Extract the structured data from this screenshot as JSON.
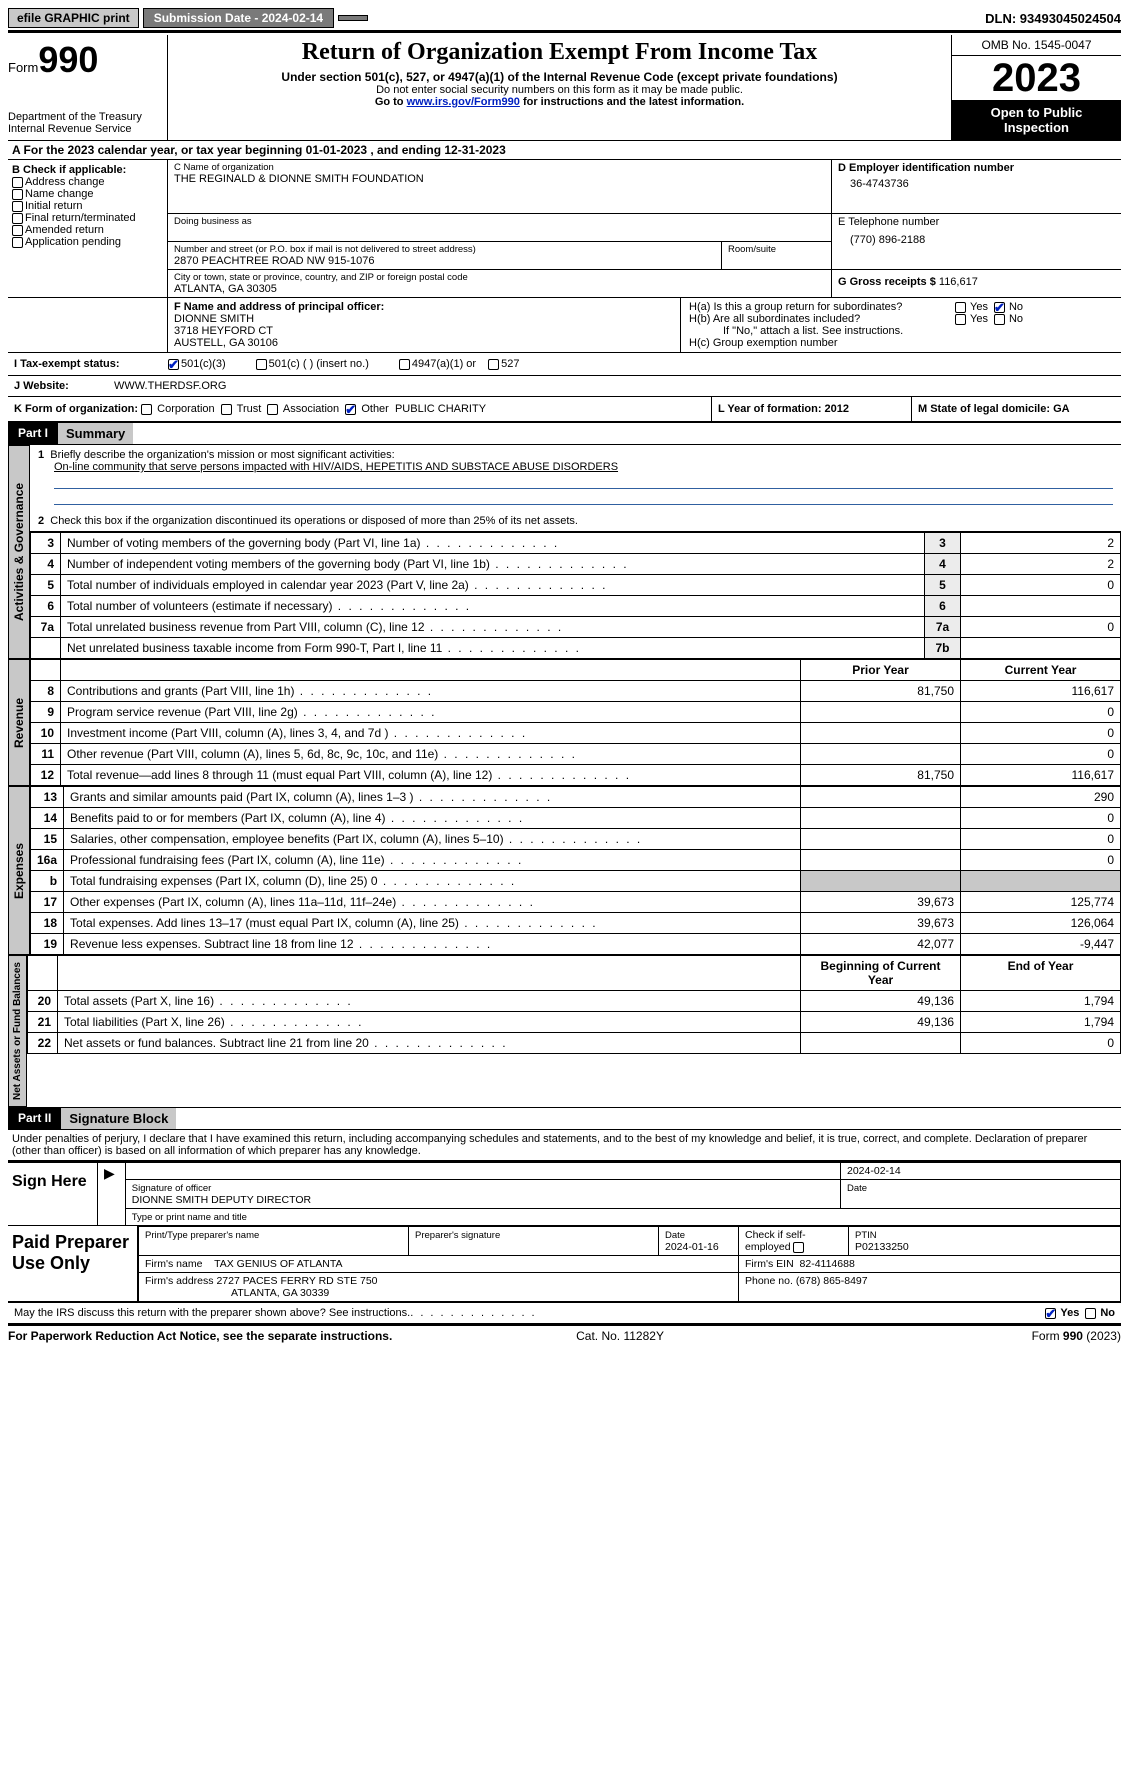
{
  "topbar": {
    "efile": "efile GRAPHIC print",
    "submission_label": "Submission Date - 2024-02-14",
    "dln": "DLN: 93493045024504"
  },
  "header": {
    "form_word": "Form",
    "form_num": "990",
    "title": "Return of Organization Exempt From Income Tax",
    "sub": "Under section 501(c), 527, or 4947(a)(1) of the Internal Revenue Code (except private foundations)",
    "ssn": "Do not enter social security numbers on this form as it may be made public.",
    "goto_pre": "Go to ",
    "goto_link": "www.irs.gov/Form990",
    "goto_post": " for instructions and the latest information.",
    "dept": "Department of the Treasury",
    "irs": "Internal Revenue Service",
    "omb": "OMB No. 1545-0047",
    "year": "2023",
    "inspect1": "Open to Public",
    "inspect2": "Inspection"
  },
  "rowA": "A For the 2023 calendar year, or tax year beginning 01-01-2023    , and ending 12-31-2023",
  "colB": {
    "label": "B Check if applicable:",
    "o1": "Address change",
    "o2": "Name change",
    "o3": "Initial return",
    "o4": "Final return/terminated",
    "o5": "Amended return",
    "o6": "Application pending"
  },
  "boxC": {
    "name_label": "C Name of organization",
    "name": "THE REGINALD & DIONNE SMITH FOUNDATION",
    "dba_label": "Doing business as",
    "street_label": "Number and street (or P.O. box if mail is not delivered to street address)",
    "street": "2870 PEACHTREE ROAD NW 915-1076",
    "room_label": "Room/suite",
    "city_label": "City or town, state or province, country, and ZIP or foreign postal code",
    "city": "ATLANTA, GA   30305"
  },
  "boxD": {
    "label": "D Employer identification number",
    "val": "36-4743736"
  },
  "boxE": {
    "label": "E Telephone number",
    "val": "(770) 896-2188"
  },
  "boxG": {
    "label": "G Gross receipts $",
    "val": "116,617"
  },
  "boxF": {
    "label": "F  Name and address of principal officer:",
    "l1": "DIONNE SMITH",
    "l2": "3718 HEYFORD CT",
    "l3": "AUSTELL, GA   30106"
  },
  "boxH": {
    "a": "H(a)  Is this a group return for subordinates?",
    "b": "H(b)  Are all subordinates included?",
    "note": "If \"No,\" attach a list. See instructions.",
    "c": "H(c)  Group exemption number",
    "yes": "Yes",
    "no": "No"
  },
  "rowI": {
    "label": "I   Tax-exempt status:",
    "o1": "501(c)(3)",
    "o2": "501(c) (  ) (insert no.)",
    "o3": "4947(a)(1) or",
    "o4": "527"
  },
  "rowJ": {
    "label": "J   Website:",
    "val": "WWW.THERDSF.ORG"
  },
  "rowK": {
    "label": "K Form of organization:",
    "o1": "Corporation",
    "o2": "Trust",
    "o3": "Association",
    "o4": "Other",
    "o4v": "PUBLIC CHARITY"
  },
  "rowL": "L Year of formation: 2012",
  "rowM": "M State of legal domicile: GA",
  "part1": {
    "hdr": "Part I",
    "title": "Summary"
  },
  "summary": {
    "tabs": {
      "ag": "Activities & Governance",
      "rev": "Revenue",
      "exp": "Expenses",
      "net": "Net Assets or Fund Balances"
    },
    "l1a": "Briefly describe the organization's mission or most significant activities:",
    "l1b": "On-line community that serve persons impacted with HIV/AIDS, HEPETITIS AND SUBSTACE ABUSE DISORDERS",
    "l2": "Check this box        if the organization discontinued its operations or disposed of more than 25% of its net assets.",
    "ag_rows": [
      {
        "n": "3",
        "t": "Number of voting members of the governing body (Part VI, line 1a)",
        "b": "3",
        "v": "2"
      },
      {
        "n": "4",
        "t": "Number of independent voting members of the governing body (Part VI, line 1b)",
        "b": "4",
        "v": "2"
      },
      {
        "n": "5",
        "t": "Total number of individuals employed in calendar year 2023 (Part V, line 2a)",
        "b": "5",
        "v": "0"
      },
      {
        "n": "6",
        "t": "Total number of volunteers (estimate if necessary)",
        "b": "6",
        "v": ""
      },
      {
        "n": "7a",
        "t": "Total unrelated business revenue from Part VIII, column (C), line 12",
        "b": "7a",
        "v": "0"
      },
      {
        "n": "",
        "t": "Net unrelated business taxable income from Form 990-T, Part I, line 11",
        "b": "7b",
        "v": ""
      }
    ],
    "col_py": "Prior Year",
    "col_cy": "Current Year",
    "rev_rows": [
      {
        "n": "8",
        "t": "Contributions and grants (Part VIII, line 1h)",
        "p": "81,750",
        "c": "116,617"
      },
      {
        "n": "9",
        "t": "Program service revenue (Part VIII, line 2g)",
        "p": "",
        "c": "0"
      },
      {
        "n": "10",
        "t": "Investment income (Part VIII, column (A), lines 3, 4, and 7d )",
        "p": "",
        "c": "0"
      },
      {
        "n": "11",
        "t": "Other revenue (Part VIII, column (A), lines 5, 6d, 8c, 9c, 10c, and 11e)",
        "p": "",
        "c": "0"
      },
      {
        "n": "12",
        "t": "Total revenue—add lines 8 through 11 (must equal Part VIII, column (A), line 12)",
        "p": "81,750",
        "c": "116,617"
      }
    ],
    "exp_rows": [
      {
        "n": "13",
        "t": "Grants and similar amounts paid (Part IX, column (A), lines 1–3 )",
        "p": "",
        "c": "290"
      },
      {
        "n": "14",
        "t": "Benefits paid to or for members (Part IX, column (A), line 4)",
        "p": "",
        "c": "0"
      },
      {
        "n": "15",
        "t": "Salaries, other compensation, employee benefits (Part IX, column (A), lines 5–10)",
        "p": "",
        "c": "0"
      },
      {
        "n": "16a",
        "t": "Professional fundraising fees (Part IX, column (A), line 11e)",
        "p": "",
        "c": "0"
      },
      {
        "n": "b",
        "t": "Total fundraising expenses (Part IX, column (D), line 25) 0",
        "p": "SHADE",
        "c": "SHADE"
      },
      {
        "n": "17",
        "t": "Other expenses (Part IX, column (A), lines 11a–11d, 11f–24e)",
        "p": "39,673",
        "c": "125,774"
      },
      {
        "n": "18",
        "t": "Total expenses. Add lines 13–17 (must equal Part IX, column (A), line 25)",
        "p": "39,673",
        "c": "126,064"
      },
      {
        "n": "19",
        "t": "Revenue less expenses. Subtract line 18 from line 12",
        "p": "42,077",
        "c": "-9,447"
      }
    ],
    "col_boy": "Beginning of Current Year",
    "col_eoy": "End of Year",
    "net_rows": [
      {
        "n": "20",
        "t": "Total assets (Part X, line 16)",
        "p": "49,136",
        "c": "1,794"
      },
      {
        "n": "21",
        "t": "Total liabilities (Part X, line 26)",
        "p": "49,136",
        "c": "1,794"
      },
      {
        "n": "22",
        "t": "Net assets or fund balances. Subtract line 21 from line 20",
        "p": "",
        "c": "0"
      }
    ]
  },
  "part2": {
    "hdr": "Part II",
    "title": "Signature Block"
  },
  "perjury": "Under penalties of perjury, I declare that I have examined this return, including accompanying schedules and statements, and to the best of my knowledge and belief, it is true, correct, and complete. Declaration of preparer (other than officer) is based on all information of which preparer has any knowledge.",
  "sign": {
    "here": "Sign Here",
    "date": "2024-02-14",
    "sig_label": "Signature of officer",
    "name": "DIONNE SMITH  DEPUTY DIRECTOR",
    "type_label": "Type or print name and title",
    "date_label": "Date"
  },
  "paid": {
    "title": "Paid Preparer Use Only",
    "c1": "Print/Type preparer's name",
    "c2": "Preparer's signature",
    "c3": "Date",
    "c3v": "2024-01-16",
    "c4": "Check         if self-employed",
    "c5": "PTIN",
    "c5v": "P02133250",
    "fname_l": "Firm's name",
    "fname": "TAX GENIUS OF ATLANTA",
    "fein_l": "Firm's EIN",
    "fein": "82-4114688",
    "faddr_l": "Firm's address",
    "faddr1": "2727 PACES FERRY RD STE 750",
    "faddr2": "ATLANTA, GA   30339",
    "fphone_l": "Phone no.",
    "fphone": "(678) 865-8497"
  },
  "discuss": "May the IRS discuss this return with the preparer shown above? See instructions.",
  "footer": {
    "left": "For Paperwork Reduction Act Notice, see the separate instructions.",
    "mid": "Cat. No. 11282Y",
    "right_a": "Form ",
    "right_b": "990",
    "right_c": " (2023)"
  }
}
